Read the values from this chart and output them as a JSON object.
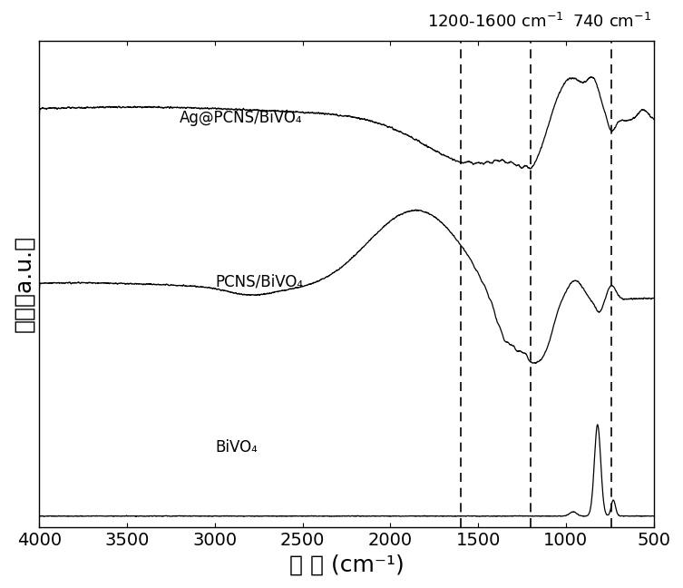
{
  "xlabel": "波 数 (cm⁻¹)",
  "ylabel": "强度（a.u.）",
  "xmin": 500,
  "xmax": 4000,
  "xlabel_fontsize": 18,
  "ylabel_fontsize": 18,
  "tick_fontsize": 14,
  "line_color": "#000000",
  "background_color": "#ffffff",
  "dashed_lines": [
    1200,
    1600,
    740
  ],
  "label_ag": "Ag@PCNS/BiVO₄",
  "label_pcns": "PCNS/BiVO₄",
  "label_bivo": "BiVO₄",
  "ann1": "1200-1600 cm",
  "ann2": "740 cm"
}
